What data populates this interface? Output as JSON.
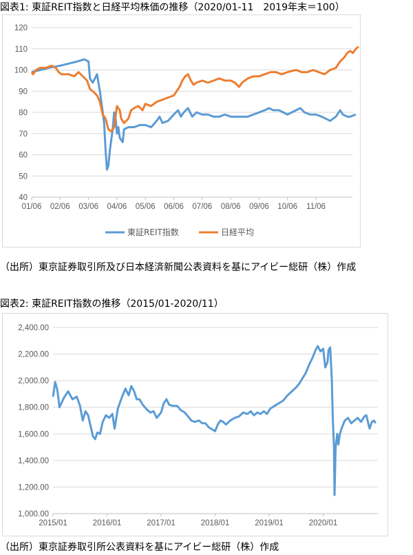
{
  "chart1": {
    "title": "図表1: 東証REIT指数と日経平均株価の推移（2020/01-11　2019年末＝100）",
    "source": "（出所）東京証券取引所及び日本経済新聞公表資料を基にアイビー総研（株）作成",
    "legend": [
      "東証REIT指数",
      "日経平均"
    ]
  },
  "chart2": {
    "title": "図表2: 東証REIT指数の推移（2015/01-2020/11）",
    "source": "（出所）東京証券取引所公表資料を基にアイビー総研（株）作成"
  },
  "colors": {
    "reit": "#5b9bd5",
    "nikkei": "#ed7d31",
    "grid": "#d9d9d9",
    "axis": "#bfbfbf"
  },
  "chart_data": [
    {
      "type": "line",
      "x_ticks": [
        "01/06",
        "02/06",
        "03/06",
        "04/06",
        "05/06",
        "06/06",
        "07/06",
        "08/06",
        "09/06",
        "10/06",
        "11/06"
      ],
      "y_ticks": [
        "40",
        "50",
        "60",
        "70",
        "80",
        "90",
        "100",
        "110",
        "120"
      ],
      "ylim": [
        40,
        120
      ],
      "grid": true,
      "legend_position": "bottom",
      "series": [
        {
          "name": "東証REIT指数",
          "points": [
            [
              0.0,
              99
            ],
            [
              0.3,
              100
            ],
            [
              0.6,
              101
            ],
            [
              1.0,
              102
            ],
            [
              1.3,
              103
            ],
            [
              1.6,
              104
            ],
            [
              1.85,
              105
            ],
            [
              2.0,
              104
            ],
            [
              2.05,
              96
            ],
            [
              2.15,
              94
            ],
            [
              2.3,
              98
            ],
            [
              2.4,
              90
            ],
            [
              2.5,
              80
            ],
            [
              2.55,
              75
            ],
            [
              2.6,
              62
            ],
            [
              2.65,
              53
            ],
            [
              2.7,
              55
            ],
            [
              2.75,
              62
            ],
            [
              2.85,
              72
            ],
            [
              2.9,
              80
            ],
            [
              2.95,
              78
            ],
            [
              3.0,
              70
            ],
            [
              3.05,
              73
            ],
            [
              3.1,
              68
            ],
            [
              3.2,
              66
            ],
            [
              3.25,
              72
            ],
            [
              3.4,
              73
            ],
            [
              3.6,
              73
            ],
            [
              3.8,
              74
            ],
            [
              4.0,
              74
            ],
            [
              4.2,
              73
            ],
            [
              4.4,
              76
            ],
            [
              4.5,
              78
            ],
            [
              4.6,
              75
            ],
            [
              4.8,
              76
            ],
            [
              5.0,
              79
            ],
            [
              5.15,
              81
            ],
            [
              5.25,
              78
            ],
            [
              5.35,
              80
            ],
            [
              5.5,
              82
            ],
            [
              5.65,
              78
            ],
            [
              5.8,
              80
            ],
            [
              6.0,
              79
            ],
            [
              6.2,
              79
            ],
            [
              6.4,
              78
            ],
            [
              6.6,
              78
            ],
            [
              6.8,
              79
            ],
            [
              7.0,
              78
            ],
            [
              7.3,
              78
            ],
            [
              7.6,
              78
            ],
            [
              7.8,
              79
            ],
            [
              8.0,
              80
            ],
            [
              8.2,
              81
            ],
            [
              8.35,
              82
            ],
            [
              8.5,
              81
            ],
            [
              8.7,
              81
            ],
            [
              8.85,
              80
            ],
            [
              9.0,
              79
            ],
            [
              9.15,
              80
            ],
            [
              9.3,
              81
            ],
            [
              9.45,
              82
            ],
            [
              9.6,
              80
            ],
            [
              9.8,
              79
            ],
            [
              10.0,
              79
            ],
            [
              10.2,
              78
            ],
            [
              10.35,
              77
            ],
            [
              10.5,
              76
            ],
            [
              10.7,
              78
            ],
            [
              10.85,
              81
            ],
            [
              10.95,
              79
            ],
            [
              11.1,
              78
            ],
            [
              11.2,
              78
            ],
            [
              11.4,
              79
            ]
          ]
        },
        {
          "name": "日経平均",
          "points": [
            [
              0.0,
              99
            ],
            [
              0.05,
              98
            ],
            [
              0.15,
              100
            ],
            [
              0.3,
              101
            ],
            [
              0.5,
              101
            ],
            [
              0.7,
              102
            ],
            [
              0.85,
              101
            ],
            [
              0.95,
              99
            ],
            [
              1.05,
              98
            ],
            [
              1.3,
              98
            ],
            [
              1.5,
              97
            ],
            [
              1.65,
              99
            ],
            [
              1.8,
              97
            ],
            [
              1.95,
              95
            ],
            [
              2.05,
              91
            ],
            [
              2.15,
              90
            ],
            [
              2.3,
              88
            ],
            [
              2.4,
              85
            ],
            [
              2.5,
              79
            ],
            [
              2.6,
              77
            ],
            [
              2.7,
              72
            ],
            [
              2.8,
              71
            ],
            [
              2.9,
              73
            ],
            [
              3.0,
              83
            ],
            [
              3.1,
              81
            ],
            [
              3.15,
              77
            ],
            [
              3.25,
              75
            ],
            [
              3.4,
              77
            ],
            [
              3.5,
              81
            ],
            [
              3.6,
              82
            ],
            [
              3.75,
              83
            ],
            [
              3.9,
              81
            ],
            [
              4.0,
              84
            ],
            [
              4.2,
              83
            ],
            [
              4.4,
              85
            ],
            [
              4.6,
              86
            ],
            [
              4.8,
              87
            ],
            [
              5.0,
              88
            ],
            [
              5.1,
              90
            ],
            [
              5.2,
              92
            ],
            [
              5.3,
              95
            ],
            [
              5.4,
              97
            ],
            [
              5.5,
              98
            ],
            [
              5.6,
              95
            ],
            [
              5.7,
              93
            ],
            [
              5.8,
              94
            ],
            [
              6.0,
              95
            ],
            [
              6.2,
              94
            ],
            [
              6.4,
              95
            ],
            [
              6.6,
              96
            ],
            [
              6.8,
              95
            ],
            [
              7.0,
              95
            ],
            [
              7.15,
              94
            ],
            [
              7.3,
              92
            ],
            [
              7.4,
              94
            ],
            [
              7.6,
              96
            ],
            [
              7.8,
              97
            ],
            [
              8.0,
              97
            ],
            [
              8.2,
              98
            ],
            [
              8.4,
              99
            ],
            [
              8.6,
              99
            ],
            [
              8.8,
              98
            ],
            [
              9.0,
              99
            ],
            [
              9.3,
              100
            ],
            [
              9.5,
              99
            ],
            [
              9.7,
              99
            ],
            [
              9.9,
              100
            ],
            [
              10.1,
              99
            ],
            [
              10.3,
              98
            ],
            [
              10.5,
              100
            ],
            [
              10.7,
              101
            ],
            [
              10.85,
              104
            ],
            [
              11.0,
              106
            ],
            [
              11.1,
              108
            ],
            [
              11.2,
              109
            ],
            [
              11.3,
              108
            ],
            [
              11.4,
              110
            ],
            [
              11.5,
              111
            ]
          ]
        }
      ]
    },
    {
      "type": "line",
      "x_ticks": [
        "2015/01",
        "2016/01",
        "2017/01",
        "2018/01",
        "2019/01",
        "2020/01"
      ],
      "y_ticks": [
        "1,000.00",
        "1,200.00",
        "1,400.00",
        "1,600.00",
        "1,800.00",
        "2,000.00",
        "2,200.00",
        "2,400.00"
      ],
      "ylim": [
        1000,
        2400
      ],
      "grid": true,
      "series": [
        {
          "name": "東証REIT指数",
          "points": [
            [
              2015.0,
              1880
            ],
            [
              2015.04,
              1990
            ],
            [
              2015.08,
              1930
            ],
            [
              2015.12,
              1800
            ],
            [
              2015.2,
              1870
            ],
            [
              2015.28,
              1920
            ],
            [
              2015.36,
              1860
            ],
            [
              2015.44,
              1880
            ],
            [
              2015.5,
              1810
            ],
            [
              2015.55,
              1700
            ],
            [
              2015.6,
              1770
            ],
            [
              2015.65,
              1740
            ],
            [
              2015.7,
              1650
            ],
            [
              2015.74,
              1580
            ],
            [
              2015.78,
              1560
            ],
            [
              2015.82,
              1610
            ],
            [
              2015.87,
              1600
            ],
            [
              2015.92,
              1690
            ],
            [
              2015.98,
              1740
            ],
            [
              2016.04,
              1720
            ],
            [
              2016.1,
              1750
            ],
            [
              2016.14,
              1640
            ],
            [
              2016.2,
              1790
            ],
            [
              2016.27,
              1870
            ],
            [
              2016.34,
              1940
            ],
            [
              2016.4,
              1890
            ],
            [
              2016.45,
              1960
            ],
            [
              2016.5,
              1920
            ],
            [
              2016.55,
              1860
            ],
            [
              2016.6,
              1860
            ],
            [
              2016.66,
              1820
            ],
            [
              2016.72,
              1790
            ],
            [
              2016.8,
              1760
            ],
            [
              2016.86,
              1770
            ],
            [
              2016.92,
              1720
            ],
            [
              2017.0,
              1760
            ],
            [
              2017.05,
              1830
            ],
            [
              2017.1,
              1860
            ],
            [
              2017.15,
              1820
            ],
            [
              2017.22,
              1810
            ],
            [
              2017.3,
              1810
            ],
            [
              2017.36,
              1780
            ],
            [
              2017.44,
              1760
            ],
            [
              2017.5,
              1730
            ],
            [
              2017.56,
              1700
            ],
            [
              2017.62,
              1690
            ],
            [
              2017.7,
              1700
            ],
            [
              2017.76,
              1680
            ],
            [
              2017.82,
              1680
            ],
            [
              2017.88,
              1650
            ],
            [
              2017.96,
              1630
            ],
            [
              2018.0,
              1620
            ],
            [
              2018.05,
              1670
            ],
            [
              2018.1,
              1700
            ],
            [
              2018.15,
              1690
            ],
            [
              2018.2,
              1670
            ],
            [
              2018.28,
              1700
            ],
            [
              2018.36,
              1720
            ],
            [
              2018.44,
              1730
            ],
            [
              2018.52,
              1760
            ],
            [
              2018.6,
              1750
            ],
            [
              2018.66,
              1770
            ],
            [
              2018.72,
              1740
            ],
            [
              2018.78,
              1760
            ],
            [
              2018.84,
              1750
            ],
            [
              2018.9,
              1770
            ],
            [
              2018.96,
              1750
            ],
            [
              2019.02,
              1790
            ],
            [
              2019.1,
              1810
            ],
            [
              2019.18,
              1830
            ],
            [
              2019.26,
              1850
            ],
            [
              2019.34,
              1890
            ],
            [
              2019.42,
              1920
            ],
            [
              2019.5,
              1950
            ],
            [
              2019.56,
              1980
            ],
            [
              2019.62,
              2020
            ],
            [
              2019.68,
              2060
            ],
            [
              2019.74,
              2120
            ],
            [
              2019.8,
              2170
            ],
            [
              2019.86,
              2230
            ],
            [
              2019.9,
              2260
            ],
            [
              2019.95,
              2220
            ],
            [
              2020.0,
              2240
            ],
            [
              2020.04,
              2100
            ],
            [
              2020.08,
              2140
            ],
            [
              2020.1,
              2230
            ],
            [
              2020.13,
              2250
            ],
            [
              2020.16,
              2000
            ],
            [
              2020.18,
              1700
            ],
            [
              2020.2,
              1500
            ],
            [
              2020.21,
              1140
            ],
            [
              2020.23,
              1500
            ],
            [
              2020.26,
              1600
            ],
            [
              2020.28,
              1520
            ],
            [
              2020.31,
              1600
            ],
            [
              2020.34,
              1640
            ],
            [
              2020.4,
              1700
            ],
            [
              2020.46,
              1720
            ],
            [
              2020.52,
              1680
            ],
            [
              2020.58,
              1700
            ],
            [
              2020.64,
              1720
            ],
            [
              2020.7,
              1690
            ],
            [
              2020.76,
              1730
            ],
            [
              2020.8,
              1740
            ],
            [
              2020.84,
              1670
            ],
            [
              2020.86,
              1640
            ],
            [
              2020.9,
              1690
            ],
            [
              2020.94,
              1700
            ],
            [
              2020.97,
              1680
            ]
          ]
        }
      ]
    }
  ]
}
